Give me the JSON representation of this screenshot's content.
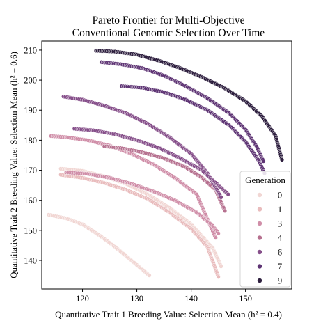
{
  "chart_data": {
    "type": "scatter",
    "title": "Pareto Frontier for Multi-Objective\nConventional Genomic Selection Over Time",
    "title_lines": [
      "Pareto Frontier for Multi-Objective",
      "Conventional Genomic Selection Over Time"
    ],
    "xlabel": "Quantitative Trait 1 Breeding Value: Selection Mean (h² = 0.4)",
    "ylabel": "Quantitative Trait 2 Breeding Value: Selection Mean (h² = 0.6)",
    "xlim": [
      112.5,
      158.5
    ],
    "ylim": [
      130.5,
      213
    ],
    "xticks": [
      120,
      130,
      140,
      150
    ],
    "yticks": [
      140,
      150,
      160,
      170,
      180,
      190,
      200,
      210
    ],
    "grid": false,
    "legend": {
      "title": "Generation",
      "position": "lower-right",
      "entries": [
        {
          "label": "0",
          "color": "#f1d6d3"
        },
        {
          "label": "1",
          "color": "#e9bcbd"
        },
        {
          "label": "3",
          "color": "#d08ea8"
        },
        {
          "label": "4",
          "color": "#b6708f"
        },
        {
          "label": "6",
          "color": "#864f8a"
        },
        {
          "label": "7",
          "color": "#5e3474"
        },
        {
          "label": "9",
          "color": "#2d1e3e"
        }
      ]
    },
    "series": [
      {
        "name": "0",
        "color": "#f1d6d3",
        "x": [
          113.8,
          117,
          120,
          123,
          126,
          129,
          132.3
        ],
        "y": [
          155.2,
          154,
          152,
          148.5,
          144.5,
          140,
          135
        ]
      },
      {
        "name": "0",
        "color": "#f1d6d3",
        "x": [
          116,
          120,
          124,
          128,
          132,
          136,
          140,
          144,
          145.5
        ],
        "y": [
          170.5,
          169.8,
          168,
          165.5,
          162,
          157.5,
          152,
          144,
          138
        ]
      },
      {
        "name": "1",
        "color": "#e9bcbd",
        "x": [
          116,
          120,
          124,
          128,
          132,
          136,
          140,
          143,
          145
        ],
        "y": [
          168.5,
          167.5,
          165.8,
          163.5,
          160.5,
          156,
          150.5,
          144.5,
          134.5
        ]
      },
      {
        "name": "3",
        "color": "#d08ea8",
        "x": [
          114.2,
          117,
          121,
          125,
          129,
          133,
          137,
          141,
          144.5
        ],
        "y": [
          181.4,
          181,
          180,
          178.2,
          175.5,
          172,
          167.5,
          162,
          147.5
        ]
      },
      {
        "name": "3",
        "color": "#d08ea8",
        "x": [
          117,
          121,
          125,
          129,
          133,
          137,
          141,
          144,
          145
        ],
        "y": [
          169.3,
          168.8,
          167.5,
          165.5,
          163,
          160,
          156,
          151.5,
          149
        ]
      },
      {
        "name": "4",
        "color": "#b6708f",
        "x": [
          124,
          127,
          131,
          135,
          139,
          142,
          144.5,
          146.2
        ],
        "y": [
          178,
          177.4,
          176,
          174,
          171,
          167.5,
          163.5,
          156.5
        ]
      },
      {
        "name": "6",
        "color": "#864f8a",
        "x": [
          116.5,
          120,
          124,
          128,
          132,
          136,
          140,
          143,
          145.5
        ],
        "y": [
          194.5,
          193.5,
          191.5,
          189,
          185.5,
          181,
          175.5,
          169,
          161
        ]
      },
      {
        "name": "6",
        "color": "#864f8a",
        "x": [
          118.5,
          122,
          126,
          130,
          134,
          138,
          142,
          145,
          146.8
        ],
        "y": [
          183.8,
          183.3,
          182,
          180,
          177.5,
          174,
          170,
          165,
          162
        ]
      },
      {
        "name": "7",
        "color": "#5e3474",
        "x": [
          127.2,
          131,
          135,
          139,
          143,
          147,
          150,
          152.5,
          153.5
        ],
        "y": [
          198,
          197.5,
          196,
          193.5,
          190,
          185,
          179.5,
          173,
          169
        ]
      },
      {
        "name": "7",
        "color": "#5e3474",
        "x": [
          123.5,
          127,
          131,
          135,
          139,
          143,
          147,
          150,
          152,
          153.3
        ],
        "y": [
          206,
          205.3,
          204,
          201.5,
          198,
          194,
          189,
          183.5,
          178,
          173
        ]
      },
      {
        "name": "9",
        "color": "#2d1e3e",
        "x": [
          122.5,
          126,
          130,
          134,
          138,
          142,
          146,
          150,
          153,
          155.5,
          156.7
        ],
        "y": [
          209.8,
          209.5,
          208.5,
          206.5,
          204,
          201,
          197.5,
          193,
          188,
          181.5,
          173.5
        ]
      }
    ]
  }
}
